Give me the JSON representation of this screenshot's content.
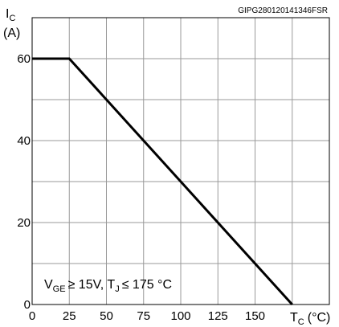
{
  "chart_data": {
    "type": "line",
    "doc_code": "GIPG280120141346FSR",
    "ylabel_sym": "I",
    "ylabel_sub": "C",
    "ylabel_unit": "(A)",
    "xlabel_sym": "T",
    "xlabel_sub": "C",
    "xlabel_unit": "(°C)",
    "cond_v": "V",
    "cond_v_sub": "GE",
    "cond_v_rest": "≥ 15V, T",
    "cond_t_sub": "J",
    "cond_t_rest": "≤ 175 °C",
    "xlim": [
      0,
      200
    ],
    "ylim": [
      0,
      70
    ],
    "x_ticks": [
      0,
      25,
      50,
      75,
      100,
      125,
      150
    ],
    "y_ticks": [
      0,
      20,
      40,
      60
    ],
    "grid": true,
    "series": [
      {
        "x": [
          0,
          25,
          175
        ],
        "y": [
          60,
          60,
          0
        ]
      }
    ]
  }
}
